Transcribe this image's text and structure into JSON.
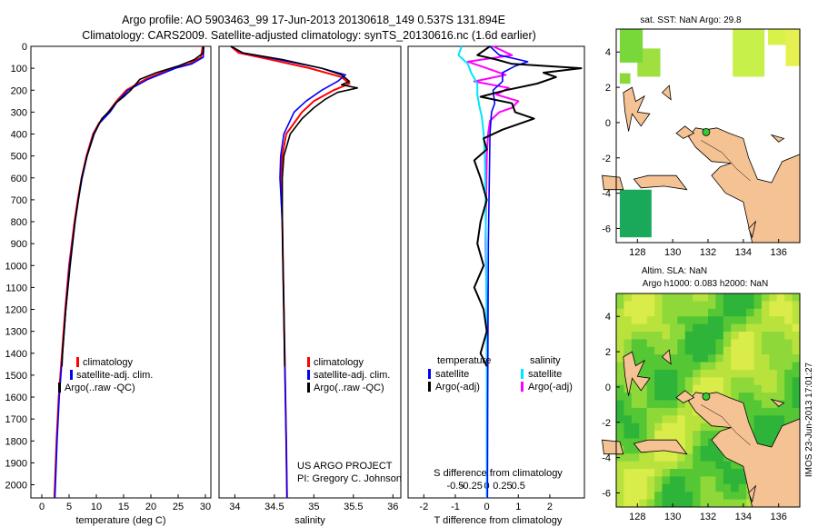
{
  "header": {
    "line1": "Argo profile: AO 5903463_99 17-Jun-2013 20130618_149 0.537S 131.894E",
    "line2": "Climatology: CARS2009. Satellite-adjusted climatology: synTS_20130616.nc (1.6d earlier)"
  },
  "colors": {
    "clim": "#ff0000",
    "sat": "#0000ff",
    "argo": "#000000",
    "sat_diff": "#00e5ff",
    "argo_diff": "#ff00ff",
    "land": "#f5c293",
    "marker": "#33cc33"
  },
  "depth_ticks": [
    "0",
    "100",
    "200",
    "300",
    "400",
    "500",
    "600",
    "700",
    "800",
    "900",
    "1000",
    "1100",
    "1200",
    "1300",
    "1400",
    "1500",
    "1600",
    "1700",
    "1800",
    "1900",
    "2000"
  ],
  "chart_data": [
    {
      "type": "line",
      "name": "temperature",
      "xlabel": "temperature (deg C)",
      "ylabel": "",
      "xlim": [
        -2,
        31
      ],
      "ylim": [
        2060,
        0
      ],
      "xticks": [
        "0",
        "5",
        "10",
        "15",
        "20",
        "25",
        "30"
      ],
      "legend": [
        "climatology",
        "satellite-adj. clim.",
        "Argo(..raw -QC)"
      ],
      "series": [
        {
          "name": "climatology",
          "depth": [
            0,
            50,
            80,
            100,
            150,
            200,
            250,
            300,
            350,
            400,
            500,
            600,
            700,
            800,
            900,
            1000,
            1200,
            1400,
            1600,
            1800,
            2000,
            2060
          ],
          "values": [
            29.5,
            29.2,
            27,
            24,
            19,
            15.5,
            13.7,
            12.2,
            10.5,
            9.4,
            8.2,
            7.3,
            6.6,
            6,
            5.5,
            5,
            4.3,
            3.7,
            3.1,
            2.7,
            2.4,
            2.3
          ]
        },
        {
          "name": "satellite-adj. clim.",
          "depth": [
            0,
            50,
            80,
            100,
            150,
            200,
            250,
            300,
            350,
            400,
            500,
            600,
            700,
            800,
            900,
            1000,
            1200,
            1400,
            1600,
            1800,
            2000,
            2060
          ],
          "values": [
            29.7,
            29.6,
            27.5,
            24.5,
            19.5,
            15.8,
            13.9,
            12.5,
            10.6,
            9.5,
            8.3,
            7.4,
            6.7,
            6.1,
            5.6,
            5.1,
            4.4,
            3.8,
            3.2,
            2.8,
            2.5,
            2.4
          ]
        },
        {
          "name": "Argo(..raw -QC)",
          "depth": [
            0,
            30,
            60,
            90,
            120,
            150,
            200,
            230,
            260,
            290,
            330,
            400,
            500,
            600,
            700,
            800,
            1000,
            1200,
            1400,
            1460
          ],
          "values": [
            29.6,
            29.6,
            28,
            25,
            21,
            18,
            16.3,
            15,
            13.5,
            12.6,
            11,
            9.6,
            8.3,
            7.3,
            6.7,
            6.1,
            5.2,
            4.4,
            3.8,
            3.7
          ]
        }
      ]
    },
    {
      "type": "line",
      "name": "salinity",
      "xlabel": "salinity",
      "xlim": [
        33.8,
        36.1
      ],
      "ylim": [
        2060,
        0
      ],
      "xticks": [
        "34",
        "34.5",
        "35",
        "35.5",
        "36"
      ],
      "legend": [
        "climatology",
        "satellite-adj. clim.",
        "Argo(..raw -QC)"
      ],
      "footer": [
        "US ARGO PROJECT",
        "PI: Gregory C. Johnson"
      ],
      "series": [
        {
          "name": "climatology",
          "depth": [
            0,
            30,
            60,
            100,
            140,
            170,
            200,
            250,
            300,
            400,
            500,
            600,
            800,
            1000,
            1400,
            1800,
            2060
          ],
          "values": [
            33.95,
            34.05,
            34.45,
            34.95,
            35.35,
            35.45,
            35.25,
            35.0,
            34.85,
            34.65,
            34.6,
            34.58,
            34.6,
            34.61,
            34.63,
            34.65,
            34.66
          ]
        },
        {
          "name": "satellite-adj. clim.",
          "depth": [
            0,
            30,
            60,
            100,
            130,
            160,
            200,
            250,
            300,
            400,
            500,
            600,
            800,
            1000,
            1400,
            1800,
            2060
          ],
          "values": [
            33.95,
            34.1,
            34.55,
            35.1,
            35.4,
            35.3,
            35.1,
            34.9,
            34.75,
            34.62,
            34.58,
            34.57,
            34.6,
            34.61,
            34.63,
            34.65,
            34.66
          ]
        },
        {
          "name": "Argo(..raw -QC)",
          "depth": [
            0,
            30,
            60,
            100,
            130,
            160,
            175,
            190,
            210,
            240,
            280,
            330,
            400,
            500,
            600,
            800,
            1000,
            1200,
            1460
          ],
          "values": [
            33.95,
            34.1,
            34.6,
            35.1,
            35.35,
            35.45,
            35.35,
            35.55,
            35.3,
            35.15,
            35.0,
            34.85,
            34.7,
            34.62,
            34.6,
            34.6,
            34.61,
            34.62,
            34.63
          ]
        }
      ]
    },
    {
      "type": "line",
      "name": "difference",
      "xlabel_top": "S difference from climatology",
      "xlabel": "T difference from climatology",
      "xlim": [
        -2.5,
        3.1
      ],
      "ylim": [
        2060,
        0
      ],
      "xticks_T": [
        "-2",
        "-1",
        "0",
        "1",
        "2"
      ],
      "xticks_S": [
        "-0.5",
        "-0.25",
        "0",
        "0.25",
        "0.5"
      ],
      "legend_titles": [
        "temperature",
        "salinity"
      ],
      "legend_T": [
        "satellite",
        "Argo(-adj)"
      ],
      "legend_S": [
        "satellite",
        "Argo(-adj)"
      ],
      "series": [
        {
          "name": "T satellite",
          "depth": [
            0,
            40,
            70,
            90,
            120,
            160,
            200,
            260,
            300,
            400,
            600,
            900,
            1200,
            1600,
            2060
          ],
          "values": [
            0.1,
            0.4,
            1.3,
            0.9,
            0.5,
            0.5,
            0.2,
            0.25,
            0.15,
            0.1,
            0.08,
            0.05,
            0.04,
            0.03,
            0.02
          ]
        },
        {
          "name": "T Argo(-adj)",
          "depth": [
            0,
            40,
            60,
            80,
            100,
            120,
            140,
            170,
            200,
            230,
            260,
            300,
            330,
            380,
            420,
            470,
            520,
            600,
            700,
            800,
            900,
            1000,
            1100,
            1200,
            1300,
            1400,
            1460
          ],
          "values": [
            0.1,
            -0.3,
            0.3,
            0.8,
            3.0,
            1.8,
            2.2,
            1.6,
            0.6,
            -0.2,
            0.8,
            0.9,
            1.5,
            0.5,
            -0.1,
            0.0,
            -0.4,
            -0.2,
            0.0,
            -0.2,
            -0.3,
            -0.1,
            -0.4,
            -0.1,
            0.0,
            -0.2,
            0.0
          ]
        },
        {
          "name": "S satellite",
          "depth": [
            0,
            40,
            80,
            120,
            170,
            220,
            270,
            320,
            400,
            500,
            700,
            1000,
            1400,
            1800,
            2060
          ],
          "values": [
            -0.4,
            -0.45,
            -0.3,
            -0.25,
            -0.15,
            -0.15,
            -0.12,
            -0.08,
            -0.05,
            -0.03,
            -0.02,
            -0.01,
            0,
            0,
            0
          ]
        },
        {
          "name": "S Argo(-adj)",
          "depth": [
            0,
            40,
            70,
            100,
            130,
            160,
            190,
            220,
            250,
            280,
            300,
            340,
            400,
            500,
            700,
            900,
            1200,
            1460
          ],
          "values": [
            0.1,
            0.4,
            -0.3,
            0.0,
            0.3,
            -0.2,
            0.35,
            0.15,
            0.5,
            0.4,
            0.2,
            0.05,
            0.02,
            0.0,
            -0.01,
            -0.02,
            0.0,
            0.0
          ]
        }
      ]
    },
    {
      "type": "heatmap",
      "name": "sst-map",
      "title": "sat. SST: NaN Argo: 29.8",
      "xlim": [
        126.8,
        137.2
      ],
      "ylim": [
        -6.8,
        5.3
      ],
      "xticks": [
        "128",
        "130",
        "132",
        "134",
        "136"
      ],
      "yticks": [
        "4",
        "2",
        "0",
        "-2",
        "-4",
        "-6"
      ],
      "argo_lon": 131.894,
      "argo_lat": -0.537
    },
    {
      "type": "heatmap",
      "name": "sla-map",
      "title_line1": "Altim. SLA: NaN",
      "title_line2": "Argo h1000: 0.083 h2000: NaN",
      "xlim": [
        126.8,
        137.2
      ],
      "ylim": [
        -6.8,
        5.3
      ],
      "xticks": [
        "128",
        "130",
        "132",
        "134",
        "136"
      ],
      "yticks": [
        "4",
        "2",
        "0",
        "-2",
        "-4",
        "-6"
      ],
      "argo_lon": 131.894,
      "argo_lat": -0.537,
      "side_label": "IMOS 23-Jun-2013 17:01:27"
    }
  ]
}
